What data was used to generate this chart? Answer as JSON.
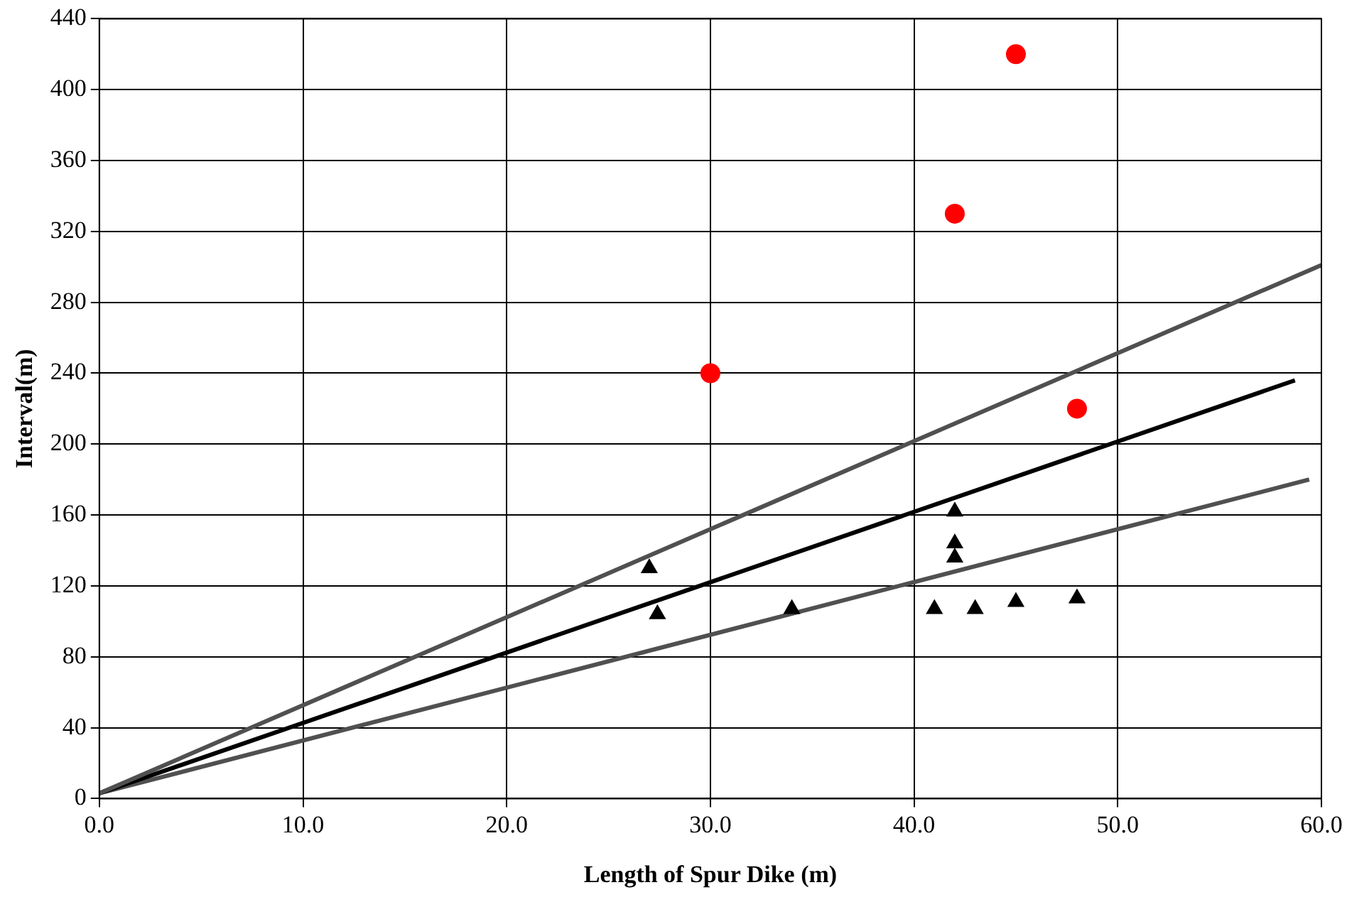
{
  "chart_data": {
    "type": "scatter",
    "xlabel": "Length of Spur Dike (m)",
    "ylabel": "Interval(m)",
    "xlim": [
      0,
      60
    ],
    "xticks": [
      {
        "value": 0,
        "label": "0.0"
      },
      {
        "value": 10,
        "label": "10.0"
      },
      {
        "value": 20,
        "label": "20.0"
      },
      {
        "value": 30,
        "label": "30.0"
      },
      {
        "value": 40,
        "label": "40.0"
      },
      {
        "value": 50,
        "label": "50.0"
      },
      {
        "value": 60,
        "label": "60.0"
      }
    ],
    "ylim": [
      0,
      440
    ],
    "yticks": [
      0,
      40,
      80,
      120,
      160,
      200,
      240,
      280,
      320,
      360,
      400,
      440
    ],
    "grid": true,
    "legend": false,
    "series": [
      {
        "marker": "circle",
        "color": "#ff0000",
        "x": [
          30,
          42,
          45,
          48
        ],
        "values": [
          240,
          330,
          420,
          220
        ]
      },
      {
        "marker": "triangle",
        "color": "#000000",
        "x": [
          27,
          27.4,
          34,
          41,
          43,
          45,
          48,
          42,
          42,
          42
        ],
        "values": [
          130,
          104,
          107,
          107,
          107,
          111,
          113,
          162,
          144,
          136
        ]
      },
      {
        "type": "line",
        "marker": "none",
        "color": "#505050",
        "x": [
          0,
          60
        ],
        "values": [
          3,
          301
        ]
      },
      {
        "type": "line",
        "marker": "none",
        "color": "#000000",
        "x": [
          0,
          58.7
        ],
        "values": [
          3,
          236
        ]
      },
      {
        "type": "line",
        "marker": "none",
        "color": "#505050",
        "x": [
          0,
          59.4
        ],
        "values": [
          3,
          180
        ]
      }
    ]
  }
}
